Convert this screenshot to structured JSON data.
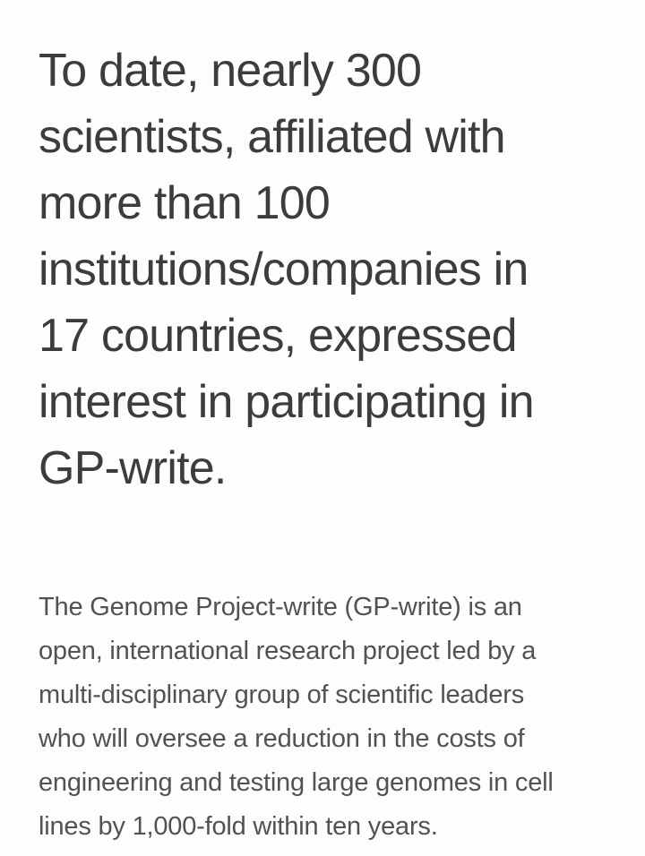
{
  "page": {
    "background_color": "#fdfdfd"
  },
  "heading": {
    "color": "#3a3c3d",
    "lines": [
      "To date, nearly 300",
      "scientists, affiliated with",
      "more than 100",
      "institutions/companies in",
      "17 countries, expressed",
      "interest in participating in",
      "GP-write."
    ]
  },
  "paragraph": {
    "color": "#515254",
    "lines": [
      "The Genome Project-write (GP-write) is an",
      "open, international research project led by a",
      "multi-disciplinary group of scientific leaders",
      "who will oversee a reduction in the costs of",
      "engineering and testing large genomes in cell",
      "lines by 1,000-fold within ten years."
    ]
  }
}
